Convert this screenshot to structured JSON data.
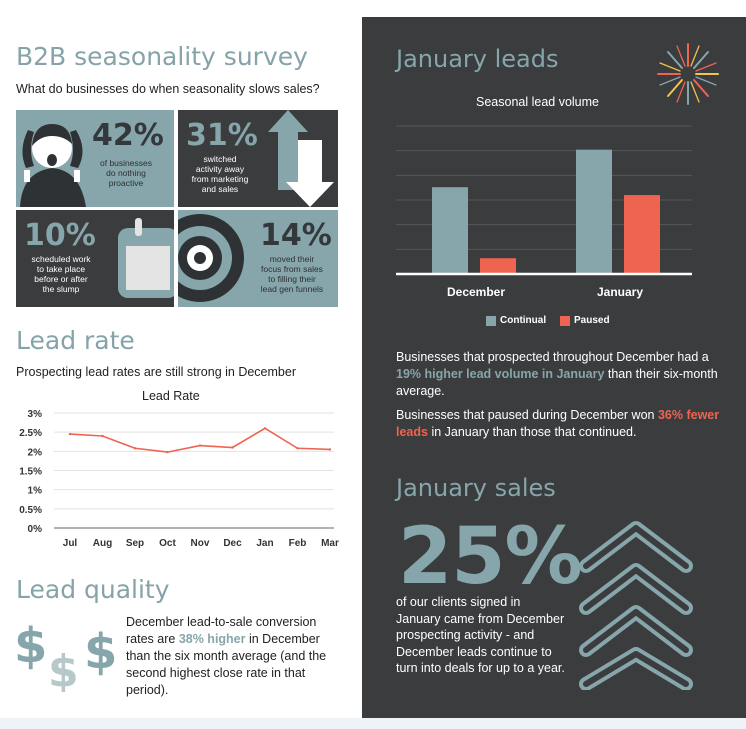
{
  "survey": {
    "title": "B2B seasonality survey",
    "subtitle": "What do businesses do when seasonality slows sales?",
    "stats": [
      {
        "pct": "42%",
        "text": [
          "of businesses",
          "do nothing",
          "proactive"
        ]
      },
      {
        "pct": "31%",
        "text": [
          "switched",
          "activity away",
          "from marketing",
          "and sales"
        ]
      },
      {
        "pct": "10%",
        "text": [
          "scheduled work",
          "to take place",
          "before or after",
          "the slump"
        ]
      },
      {
        "pct": "14%",
        "text": [
          "moved their",
          "focus from sales",
          "to filling their",
          "lead gen funnels"
        ]
      }
    ]
  },
  "lead_rate": {
    "heading": "Lead rate",
    "subtitle": "Prospecting lead rates are still strong in December",
    "chart_title": "Lead Rate"
  },
  "lead_quality": {
    "heading": "Lead quality",
    "text_before": "December lead-to-sale conversion rates are ",
    "highlight": "38% higher",
    "text_after": " in December than the six month average (and the second highest close rate in that period).",
    "icons": [
      "dollar-sign-icon",
      "dollar-sign-icon",
      "dollar-sign-icon"
    ]
  },
  "january_leads": {
    "heading": "January leads",
    "chart_title": "Seasonal lead volume",
    "para1_before": "Businesses that prospected throughout December had a ",
    "para1_highlight": "19% higher lead volume in January",
    "para1_after": " than their six-month average.",
    "para2_before": "Businesses that paused during December won ",
    "para2_highlight": "36% fewer leads",
    "para2_after": " in January than those that continued."
  },
  "january_sales": {
    "heading": "January sales",
    "big_pct": "25%",
    "text": "of our clients signed in January came from December prospecting activity - and December leads continue to turn into deals for up to a year."
  },
  "colors": {
    "teal": "#86a6ab",
    "red": "#ee6451",
    "dark": "#3a3c3e"
  },
  "chart_data": [
    {
      "type": "line",
      "title": "Lead Rate",
      "categories": [
        "Jul",
        "Aug",
        "Sep",
        "Oct",
        "Nov",
        "Dec",
        "Jan",
        "Feb",
        "Mar"
      ],
      "series": [
        {
          "name": "Lead rate",
          "values": [
            2.45,
            2.4,
            2.08,
            1.98,
            2.15,
            2.1,
            2.6,
            2.08,
            2.05
          ]
        }
      ],
      "yticks": [
        "3%",
        "2.5%",
        "2%",
        "1.5%",
        "1%",
        "0.5%",
        "0%"
      ],
      "ylim": [
        0,
        3
      ],
      "xlabel": "",
      "ylabel": "",
      "grid": true
    },
    {
      "type": "bar",
      "title": "Seasonal lead volume",
      "categories": [
        "December",
        "January"
      ],
      "series": [
        {
          "name": "Continual",
          "values": [
            88,
            126
          ]
        },
        {
          "name": "Paused",
          "values": [
            16,
            80
          ]
        }
      ],
      "ylim": [
        0,
        150
      ],
      "legend": "bottom",
      "grid": true
    }
  ]
}
